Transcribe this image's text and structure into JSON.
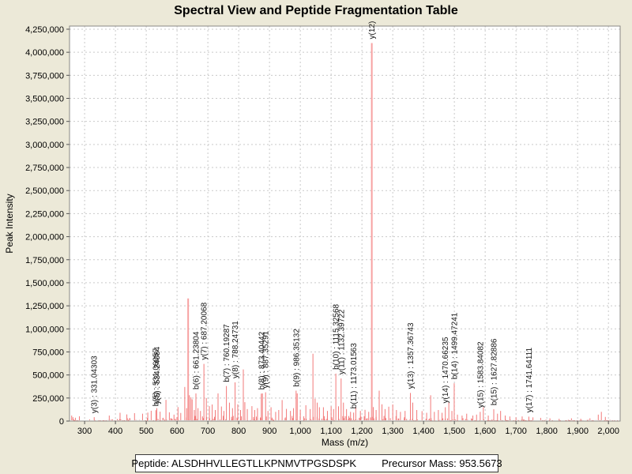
{
  "title": "Spectral View and Peptide Fragmentation Table",
  "footer": {
    "peptide_text": "Peptide: ALSDHHVLLEGTLLKPNMVTPGSDSPK",
    "precursor_text": "Precursor Mass: 953.5673"
  },
  "colors": {
    "window_background": "#ece9d8",
    "plot_background": "#ffffff",
    "plot_border": "#8a8884",
    "grid": "#c9c9c9",
    "peak": "#f27979",
    "tall_peak": "#f7a2a2",
    "text": "#000000"
  },
  "chart_data": {
    "type": "bar",
    "title": "Spectral View and Peptide Fragmentation Table",
    "xlabel": "Mass (m/z)",
    "ylabel": "Peak Intensity",
    "xlim": [
      251,
      2038
    ],
    "ylim": [
      0,
      4284000
    ],
    "x_ticks": [
      300,
      400,
      500,
      600,
      700,
      800,
      900,
      1000,
      1100,
      1200,
      1300,
      1400,
      1500,
      1600,
      1700,
      1800,
      1900,
      2000
    ],
    "y_ticks": [
      0,
      250000,
      500000,
      750000,
      1000000,
      1250000,
      1500000,
      1750000,
      2000000,
      2250000,
      2500000,
      2750000,
      3000000,
      3250000,
      3500000,
      3750000,
      4000000,
      4250000
    ],
    "grid": true,
    "legend": "none",
    "peak_color": "#f27979",
    "tall_peak_color": "#f7a2a2",
    "grid_color": "#c9c9c9",
    "border_color": "#8a8884",
    "labeled_peaks": [
      {
        "label": "y(3) : 331.04303",
        "mz": 331.04,
        "intensity": 42000
      },
      {
        "label": "b(5) : 531.06057",
        "mz": 531.06,
        "intensity": 118000
      },
      {
        "label": "y(5) : 534.24084",
        "mz": 534.24,
        "intensity": 140000
      },
      {
        "label": "b(6) : 661.23804",
        "mz": 661.24,
        "intensity": 300000
      },
      {
        "label": "y(7) : 687.20068",
        "mz": 687.2,
        "intensity": 620000
      },
      {
        "label": "b(7) : 760.19287",
        "mz": 760.19,
        "intensity": 380000
      },
      {
        "label": "y(8) : 788.24731",
        "mz": 788.25,
        "intensity": 420000
      },
      {
        "label": "b(8) : 873.40442",
        "mz": 873.4,
        "intensity": 298000
      },
      {
        "label": "y(9) : 887.35291",
        "mz": 887.35,
        "intensity": 312000
      },
      {
        "label": "b(9) : 986.35132",
        "mz": 986.35,
        "intensity": 330000
      },
      {
        "label": "b(10) : 1115.32568",
        "mz": 1115.33,
        "intensity": 515000
      },
      {
        "label": "y(11) : 1132.39722",
        "mz": 1132.4,
        "intensity": 462000
      },
      {
        "label": "b(11) : 1173.01563",
        "mz": 1173.02,
        "intensity": 92000
      },
      {
        "label": "y(12)",
        "mz": 1232.0,
        "intensity": 4100000
      },
      {
        "label": "y(13) : 1357.36743",
        "mz": 1357.37,
        "intensity": 305000
      },
      {
        "label": "y(14) : 1470.66235",
        "mz": 1470.66,
        "intensity": 150000
      },
      {
        "label": "b(14) : 1499.47241",
        "mz": 1499.47,
        "intensity": 410000
      },
      {
        "label": "y(15) : 1583.84082",
        "mz": 1583.84,
        "intensity": 100000
      },
      {
        "label": "b(15) : 1627.82886",
        "mz": 1627.83,
        "intensity": 128000
      },
      {
        "label": "y(17) : 1741.64111",
        "mz": 1741.64,
        "intensity": 48000
      }
    ],
    "unlabeled_peaks": [
      [
        258,
        60000
      ],
      [
        262,
        42000
      ],
      [
        270,
        36000
      ],
      [
        283,
        52000
      ],
      [
        380,
        60000
      ],
      [
        415,
        90000
      ],
      [
        437,
        72000
      ],
      [
        462,
        86000
      ],
      [
        488,
        80000
      ],
      [
        505,
        92000
      ],
      [
        516,
        112000
      ],
      [
        545,
        102000
      ],
      [
        564,
        230000
      ],
      [
        575,
        95000
      ],
      [
        590,
        70000
      ],
      [
        603,
        152000
      ],
      [
        612,
        88000
      ],
      [
        625,
        370000
      ],
      [
        631,
        140000
      ],
      [
        636,
        1330000
      ],
      [
        640,
        280000
      ],
      [
        645,
        258000
      ],
      [
        649,
        236000
      ],
      [
        656,
        120000
      ],
      [
        668,
        140000
      ],
      [
        676,
        110000
      ],
      [
        695,
        250000
      ],
      [
        705,
        162000
      ],
      [
        714,
        180000
      ],
      [
        724,
        120000
      ],
      [
        733,
        300000
      ],
      [
        744,
        158000
      ],
      [
        752,
        110000
      ],
      [
        770,
        200000
      ],
      [
        780,
        140000
      ],
      [
        797,
        182000
      ],
      [
        806,
        120000
      ],
      [
        815,
        560000
      ],
      [
        820,
        205000
      ],
      [
        828,
        130000
      ],
      [
        843,
        162000
      ],
      [
        852,
        120000
      ],
      [
        861,
        140000
      ],
      [
        877,
        300000
      ],
      [
        895,
        110000
      ],
      [
        905,
        150000
      ],
      [
        920,
        100000
      ],
      [
        930,
        120000
      ],
      [
        941,
        228000
      ],
      [
        955,
        132000
      ],
      [
        968,
        110000
      ],
      [
        978,
        140000
      ],
      [
        990,
        300000
      ],
      [
        1000,
        120000
      ],
      [
        1018,
        172000
      ],
      [
        1032,
        130000
      ],
      [
        1041,
        730000
      ],
      [
        1048,
        242000
      ],
      [
        1055,
        200000
      ],
      [
        1062,
        150000
      ],
      [
        1075,
        150000
      ],
      [
        1088,
        110000
      ],
      [
        1100,
        160000
      ],
      [
        1108,
        130000
      ],
      [
        1124,
        160000
      ],
      [
        1140,
        200000
      ],
      [
        1150,
        130000
      ],
      [
        1163,
        100000
      ],
      [
        1180,
        150000
      ],
      [
        1195,
        110000
      ],
      [
        1210,
        122000
      ],
      [
        1222,
        100000
      ],
      [
        1237,
        152000
      ],
      [
        1246,
        120000
      ],
      [
        1256,
        330000
      ],
      [
        1265,
        182000
      ],
      [
        1275,
        130000
      ],
      [
        1287,
        156000
      ],
      [
        1300,
        180000
      ],
      [
        1312,
        120000
      ],
      [
        1325,
        100000
      ],
      [
        1340,
        110000
      ],
      [
        1365,
        200000
      ],
      [
        1378,
        120000
      ],
      [
        1395,
        108000
      ],
      [
        1410,
        90000
      ],
      [
        1423,
        280000
      ],
      [
        1435,
        100000
      ],
      [
        1448,
        120000
      ],
      [
        1460,
        90000
      ],
      [
        1482,
        200000
      ],
      [
        1492,
        110000
      ],
      [
        1510,
        70000
      ],
      [
        1525,
        60000
      ],
      [
        1540,
        80000
      ],
      [
        1560,
        60000
      ],
      [
        1572,
        70000
      ],
      [
        1594,
        150000
      ],
      [
        1610,
        60000
      ],
      [
        1640,
        80000
      ],
      [
        1650,
        110000
      ],
      [
        1665,
        60000
      ],
      [
        1680,
        50000
      ],
      [
        1700,
        40000
      ],
      [
        1720,
        50000
      ],
      [
        1755,
        40000
      ],
      [
        1780,
        35000
      ],
      [
        1810,
        30000
      ],
      [
        1840,
        25000
      ],
      [
        1880,
        30000
      ],
      [
        1910,
        25000
      ],
      [
        1940,
        30000
      ],
      [
        1967,
        70000
      ],
      [
        1977,
        100000
      ],
      [
        1990,
        45000
      ]
    ],
    "noise": {
      "seed": 7,
      "count": 360,
      "max_amplitude": 52000
    }
  }
}
